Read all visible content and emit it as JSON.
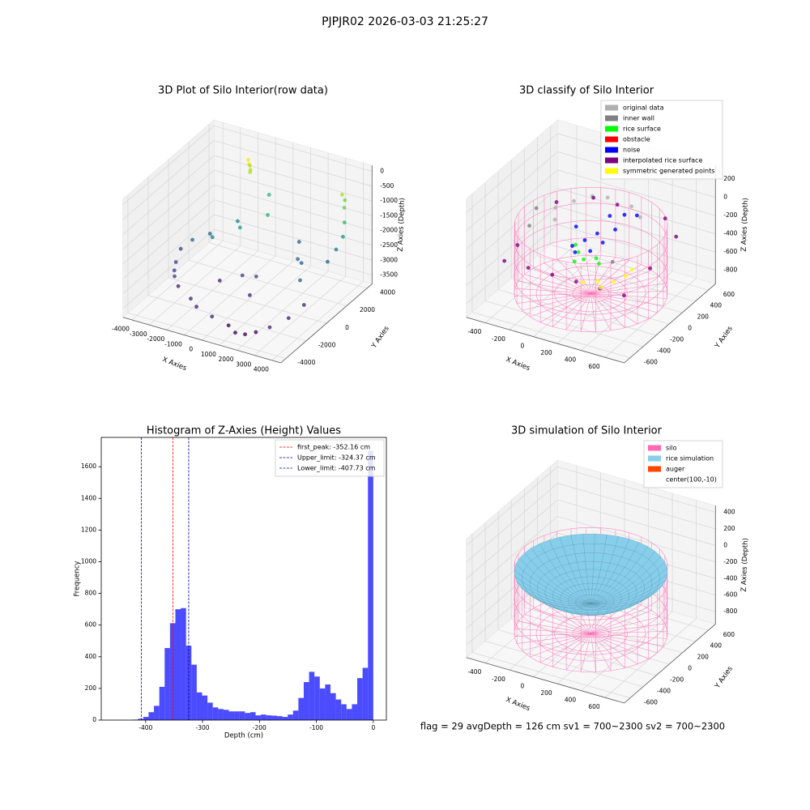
{
  "title": "PJPJR02 2026-03-03 21:25:27",
  "status": "flag = 29  avgDepth = 126 cm  sv1 = 700~2300  sv2 = 700~2300",
  "chart_data": [
    {
      "type": "scatter3d",
      "title": "3D Plot of Silo Interior(row data)",
      "xlabel": "X Axies",
      "ylabel": "Y Axies",
      "zlabel": "Z Axies (Depth)",
      "xlim": [
        -4500,
        4500
      ],
      "ylim": [
        -4500,
        4500
      ],
      "zlim": [
        -3800,
        200
      ],
      "xticks": [
        -4000,
        -3000,
        -2000,
        -1000,
        0,
        1000,
        2000,
        3000,
        4000
      ],
      "yticks": [
        -4000,
        -2000,
        0,
        2000,
        4000
      ],
      "zticks": [
        -3500,
        -3000,
        -2500,
        -2000,
        -1500,
        -1000,
        -500,
        0
      ],
      "colormap": "viridis",
      "grid": true,
      "x": [
        -1800,
        -1700,
        -1750,
        -1650,
        -1700,
        3200,
        3500,
        3800,
        4000,
        3900,
        3700,
        3300,
        2500,
        2000,
        1500,
        3000,
        -3500,
        -3300,
        -3000,
        -2500,
        -3800,
        -3600,
        -3000,
        -2000,
        0,
        500,
        -1000,
        1000,
        -1500,
        -1000,
        0,
        1000,
        1500,
        2000,
        2500,
        3000,
        3500,
        3800,
        -2000,
        -1000,
        0,
        -500
      ],
      "y": [
        3200,
        3100,
        3250,
        3150,
        3200,
        3800,
        3500,
        3000,
        2500,
        2000,
        1500,
        3900,
        1000,
        1500,
        2500,
        0,
        -1000,
        -1500,
        -2000,
        -2500,
        0,
        800,
        1500,
        2500,
        -500,
        0,
        -1000,
        -1500,
        -3000,
        -3300,
        -3500,
        -3600,
        -3800,
        -3700,
        -3500,
        -3000,
        -2000,
        -1000,
        0,
        1000,
        2000,
        3000
      ],
      "z": [
        -300,
        -400,
        -500,
        -600,
        -700,
        -800,
        -1100,
        -1400,
        -1700,
        -2000,
        -2300,
        -1000,
        -2400,
        -2500,
        -2300,
        -2600,
        -2800,
        -2900,
        -2900,
        -3000,
        -2700,
        -2600,
        -2500,
        -2200,
        -2800,
        -2900,
        -3000,
        -3000,
        -3100,
        -3200,
        -3300,
        -3400,
        -3500,
        -3500,
        -3400,
        -3300,
        -3200,
        -3000,
        -2000,
        -1800,
        -1500,
        -1200
      ]
    },
    {
      "type": "scatter3d",
      "title": "3D classify of Silo Interior",
      "xlabel": "X Axies",
      "ylabel": "Y Axies",
      "zlabel": "Z Axies (Depth)",
      "xlim": [
        -560,
        760
      ],
      "ylim": [
        -690,
        710
      ],
      "zlim": [
        -950,
        350
      ],
      "xticks": [
        -400,
        -200,
        0,
        200,
        400,
        600
      ],
      "yticks": [
        -600,
        -400,
        -200,
        0,
        200,
        400,
        600
      ],
      "zticks": [
        -800,
        -600,
        -400,
        -200,
        0,
        200
      ],
      "grid": true,
      "silo_wireframe": true,
      "legend": "upper right",
      "series": [
        {
          "name": "original data",
          "color": "#b0b0b0",
          "x": [
            -200,
            -100,
            0,
            200,
            -300,
            -250,
            300
          ],
          "y": [
            300,
            400,
            450,
            450,
            200,
            100,
            400
          ],
          "z": [
            -150,
            -120,
            -130,
            -150,
            -200,
            -250,
            -200
          ]
        },
        {
          "name": "inner wall",
          "color": "#808080",
          "x": [
            -350,
            -300,
            450
          ],
          "y": [
            0,
            -200,
            -300
          ],
          "z": [
            -100,
            -150,
            -200
          ]
        },
        {
          "name": "rice surface",
          "color": "#00ff00",
          "x": [
            0,
            100,
            -50,
            150,
            50,
            200
          ],
          "y": [
            0,
            -100,
            50,
            0,
            -150,
            -50
          ],
          "z": [
            -450,
            -430,
            -420,
            -460,
            -440,
            -470
          ]
        },
        {
          "name": "obstacle",
          "color": "#ff0000",
          "x": [],
          "y": [],
          "z": []
        },
        {
          "name": "noise",
          "color": "#0000ff",
          "x": [
            0,
            50,
            -100,
            100,
            200,
            -50,
            150,
            300,
            250,
            0,
            100
          ],
          "y": [
            100,
            200,
            150,
            300,
            200,
            0,
            100,
            350,
            250,
            -50,
            0
          ],
          "z": [
            -380,
            -350,
            -300,
            -200,
            -250,
            -400,
            -350,
            -150,
            -100,
            -420,
            -400
          ]
        },
        {
          "name": "interpolated rice surface",
          "color": "#800080",
          "x": [
            -400,
            -200,
            0,
            200,
            400,
            600,
            -400,
            600,
            600,
            -400,
            400,
            0,
            -200
          ],
          "y": [
            -400,
            -400,
            -400,
            -400,
            -400,
            -400,
            -200,
            0,
            400,
            400,
            600,
            600,
            600
          ],
          "z": [
            -450,
            -450,
            -450,
            -450,
            -450,
            -450,
            -400,
            -400,
            -300,
            -300,
            -300,
            -300,
            -300
          ]
        },
        {
          "name": "symmetric generated points",
          "color": "#ffff00",
          "x": [
            300,
            400,
            450,
            350,
            200,
            450
          ],
          "y": [
            -250,
            -200,
            -100,
            -300,
            -300,
            0
          ],
          "z": [
            -500,
            -500,
            -480,
            -520,
            -520,
            -470
          ]
        }
      ]
    },
    {
      "type": "histogram",
      "title": "Histogram of Z-Axies (Height) Values",
      "xlabel": "Depth (cm)",
      "ylabel": "Frequency",
      "xlim": [
        -478,
        23
      ],
      "ylim": [
        0,
        1785
      ],
      "xticks": [
        -400,
        -300,
        -200,
        -100,
        0
      ],
      "yticks": [
        0,
        200,
        400,
        600,
        800,
        1000,
        1200,
        1400,
        1600
      ],
      "color": "#0000ff",
      "alpha": 0.7,
      "legend": "upper right",
      "bins": [
        -423.0,
        -413.6,
        -404.2,
        -394.8,
        -385.4,
        -376.0,
        -366.6,
        -357.2,
        -347.8,
        -338.4,
        -329.0,
        -319.6,
        -310.2,
        -300.8,
        -291.4,
        -282.0,
        -272.6,
        -263.2,
        -253.8,
        -244.4,
        -235.0,
        -225.6,
        -216.2,
        -206.8,
        -197.4,
        -188.0,
        -178.6,
        -169.2,
        -159.8,
        -150.4,
        -141.0,
        -131.6,
        -122.2,
        -112.8,
        -103.4,
        -94.0,
        -84.6,
        -75.2,
        -65.8,
        -56.4,
        -47.0,
        -37.6,
        -28.2,
        -18.8,
        -9.4,
        0
      ],
      "counts": [
        3,
        8,
        20,
        50,
        90,
        210,
        455,
        612,
        700,
        707,
        470,
        350,
        175,
        155,
        110,
        80,
        70,
        65,
        55,
        55,
        55,
        45,
        50,
        30,
        35,
        30,
        28,
        25,
        20,
        35,
        60,
        140,
        240,
        305,
        275,
        200,
        225,
        170,
        130,
        100,
        70,
        100,
        265,
        330,
        1700
      ],
      "lines": [
        {
          "value": -352.16,
          "label": "first_peak: -352.16 cm",
          "color": "#ff0000"
        },
        {
          "value": -324.37,
          "label": "Upper_limit: -324.37 cm",
          "color": "#0000aa"
        },
        {
          "value": -407.73,
          "label": "Lower_limit: -407.73 cm",
          "color": "#0000aa"
        }
      ]
    },
    {
      "type": "surface3d",
      "title": "3D simulation of Silo Interior",
      "xlabel": "X Axies",
      "ylabel": "Y Axies",
      "zlabel": "Z Axies (Depth)",
      "xlim": [
        -560,
        760
      ],
      "ylim": [
        -690,
        710
      ],
      "zlim": [
        -950,
        480
      ],
      "xticks": [
        -400,
        -200,
        0,
        200,
        400,
        600
      ],
      "yticks": [
        -600,
        -400,
        -200,
        0,
        200,
        400,
        600
      ],
      "zticks": [
        -800,
        -600,
        -400,
        -200,
        0,
        200,
        400
      ],
      "grid": true,
      "silo_wireframe": true,
      "surface_color": "#87ceeb",
      "legend": "upper right",
      "legend_items": [
        {
          "name": "silo",
          "color": "#ff69b4"
        },
        {
          "name": "rice simulation",
          "color": "#87ceeb"
        },
        {
          "name": "auger",
          "color": "#ff4500"
        },
        {
          "name": "center(100,-10)"
        }
      ]
    }
  ]
}
